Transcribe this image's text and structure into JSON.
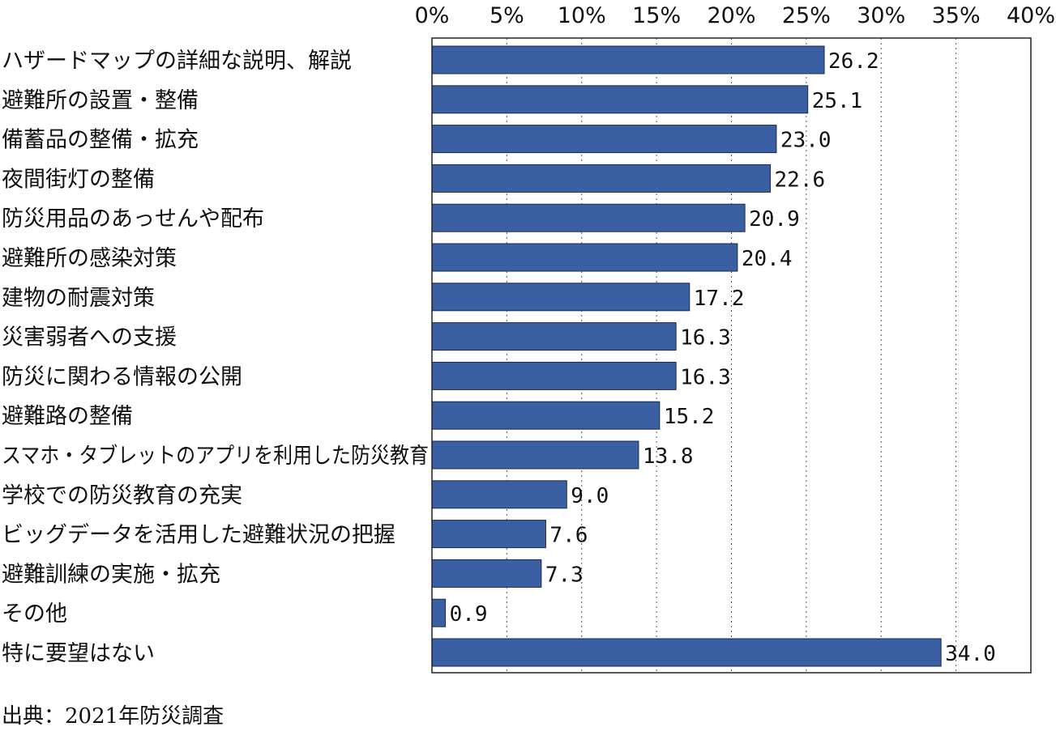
{
  "chart_data": {
    "type": "bar",
    "orientation": "horizontal",
    "categories": [
      "ハザードマップの詳細な説明、解説",
      "避難所の設置・整備",
      "備蓄品の整備・拡充",
      "夜間街灯の整備",
      "防災用品のあっせんや配布",
      "避難所の感染対策",
      "建物の耐震対策",
      "災害弱者への支援",
      "防災に関わる情報の公開",
      "避難路の整備",
      "スマホ・タブレットのアプリを利用した防災教育",
      "学校での防災教育の充実",
      "ビッグデータを活用した避難状況の把握",
      "避難訓練の実施・拡充",
      "その他",
      "特に要望はない"
    ],
    "values": [
      26.2,
      25.1,
      23.0,
      22.6,
      20.9,
      20.4,
      17.2,
      16.3,
      16.3,
      15.2,
      13.8,
      9.0,
      7.6,
      7.3,
      0.9,
      34.0
    ],
    "value_labels": [
      "26.2",
      "25.1",
      "23.0",
      "22.6",
      "20.9",
      "20.4",
      "17.2",
      "16.3",
      "16.3",
      "15.2",
      "13.8",
      "9.0",
      "7.6",
      "7.3",
      "0.9",
      "34.0"
    ],
    "xlim": [
      0,
      40
    ],
    "x_ticks": [
      0,
      5,
      10,
      15,
      20,
      25,
      30,
      35,
      40
    ],
    "x_tick_labels": [
      "0%",
      "5%",
      "10%",
      "15%",
      "20%",
      "25%",
      "30%",
      "35%",
      "40%"
    ],
    "x_axis_position": "top",
    "grid": "vertical dotted",
    "legend": "none",
    "bar_color": "#3a5fa3",
    "bar_border_color": "#1a2a4a",
    "source": "出典：2021年防災調査"
  }
}
